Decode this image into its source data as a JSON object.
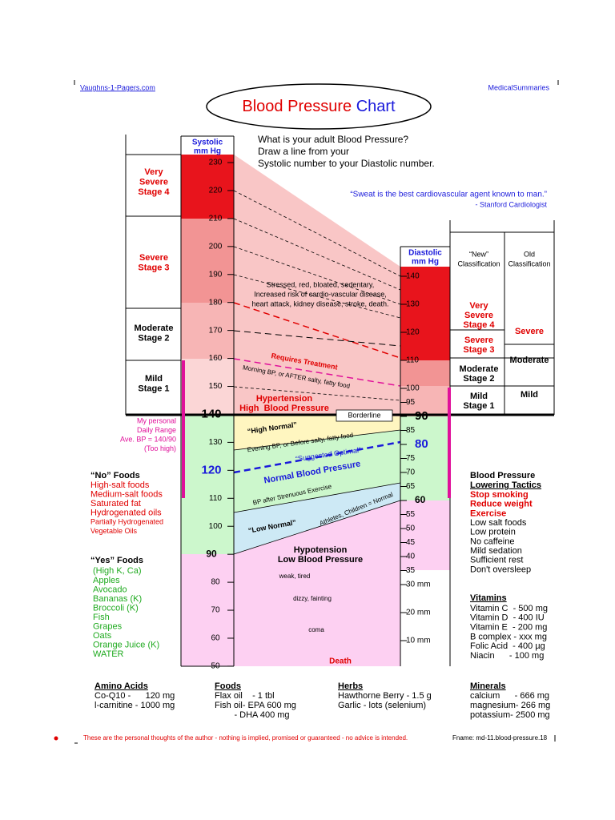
{
  "header": {
    "left": "Vaughns-1-Pagers.com",
    "right": "MedicalSummaries"
  },
  "title": {
    "main": "Blood Pressure",
    "accent": "Chart"
  },
  "instructions": [
    "What is your adult Blood Pressure?",
    "Draw a line from your",
    "Systolic number to your Diastolic number."
  ],
  "quote": {
    "text": "“Sweat is the best cardiovascular agent known to man.”",
    "source": "- Stanford Cardiologist"
  },
  "systolic": {
    "header": [
      "Systolic",
      "mm Hg"
    ],
    "ticks": [
      230,
      220,
      210,
      200,
      190,
      180,
      170,
      160,
      150,
      140,
      130,
      120,
      110,
      100,
      90,
      80,
      70,
      60,
      50
    ]
  },
  "diastolic": {
    "header": [
      "Diastolic",
      "mm Hg"
    ],
    "ticks": [
      140,
      130,
      120,
      110,
      100,
      95,
      90,
      85,
      80,
      75,
      70,
      65,
      60,
      55,
      50,
      45,
      40,
      35,
      {
        "value": 30,
        "label": "30 mm"
      },
      {
        "value": 20,
        "label": "20 mm"
      },
      {
        "value": 10,
        "label": "10 mm"
      }
    ]
  },
  "stages_left": [
    [
      "Very",
      "Severe",
      "Stage 4"
    ],
    [
      "Severe",
      "Stage 3"
    ],
    [
      "Moderate",
      "Stage 2"
    ],
    [
      "Mild",
      "Stage 1"
    ]
  ],
  "classification": {
    "new_header": [
      "“New”",
      "Classification"
    ],
    "old_header": [
      "Old",
      "Classification"
    ],
    "new": [
      [
        "Very",
        "Severe",
        "Stage 4"
      ],
      [
        "Severe",
        "Stage 3"
      ],
      [
        "Moderate",
        "Stage 2"
      ],
      [
        "Mild",
        "Stage 1"
      ]
    ],
    "old": [
      "Severe",
      "Moderate",
      "Mild"
    ]
  },
  "annotations": {
    "stressed": [
      "Stressed, red, bloated, sedentary,",
      "Increased risk of cardio-vascular disease,",
      "heart attack, kidney disease, stroke, death."
    ],
    "requires_treatment": "Requires Treatment",
    "morning": "Morning BP, or AFTER salty, fatty food",
    "hypertension": [
      "Hypertension",
      "High  Blood Pressure"
    ],
    "borderline": "Borderline",
    "high_normal": "“High Normal”",
    "evening": "Evening BP, or Before salty, fatty food",
    "suggested_optimal": "“Suggested Optimal”",
    "normal": "Normal Blood Pressure",
    "exercise": "BP after Strenuous Exercise",
    "athletes": "Athletes, Children = Normal",
    "low_normal": "“Low Normal”",
    "hypotension": [
      "Hypotension",
      "Low Blood Pressure"
    ],
    "weak": "weak, tired",
    "dizzy": "dizzy, fainting",
    "coma": "coma",
    "death": "Death"
  },
  "personal_range": [
    "My personal",
    "Daily Range",
    "Ave. BP = 140/90",
    "(Too high)"
  ],
  "no_foods": {
    "title": "“No” Foods",
    "items": [
      "High-salt foods",
      "Medium-salt foods",
      "Saturated fat",
      "Hydrogenated oils",
      "Partially Hydrogenated",
      "Vegetable Oils"
    ]
  },
  "yes_foods": {
    "title": "“Yes” Foods",
    "subtitle": "(High K, Ca)",
    "items": [
      "Apples",
      "Avocado",
      "Bananas (K)",
      "Broccoli (K)",
      "Fish",
      "Grapes",
      "Oats",
      "Orange Juice (K)",
      "WATER"
    ]
  },
  "tactics": {
    "title": [
      "Blood Pressure",
      "Lowering Tactics"
    ],
    "priority": [
      "Stop smoking",
      "Reduce weight",
      "Exercise"
    ],
    "items": [
      "Low salt foods",
      "Low protein",
      "No caffeine",
      "Mild sedation",
      "Sufficient rest",
      "Don't oversleep"
    ]
  },
  "vitamins": {
    "title": "Vitamins",
    "items": [
      "Vitamin C  - 500 mg",
      "Vitamin D  - 400 IU",
      "Vitamin E  - 200 mg",
      "B complex - xxx mg",
      "Folic Acid  - 400 µg",
      "Niacin      - 100 mg"
    ]
  },
  "supplements": [
    {
      "title": "Amino Acids",
      "items": [
        "Co-Q10 -      120 mg",
        "l-carnitine - 1000 mg"
      ]
    },
    {
      "title": "Foods",
      "items": [
        "Flax oil    - 1 tbl",
        "Fish oil- EPA 600 mg",
        "        - DHA 400 mg"
      ]
    },
    {
      "title": "Herbs",
      "items": [
        "Hawthorne Berry - 1.5 g",
        "Garlic - lots (selenium)"
      ]
    },
    {
      "title": "Minerals",
      "items": [
        "calcium      - 666 mg",
        "magnesium- 266 mg",
        "potassium- 2500 mg"
      ]
    }
  ],
  "footer": {
    "disclaimer": "These are the personal thoughts of the author - nothing is implied, promised or guaranteed - no advice is intended.",
    "filename": "Fname: md-11.blood-pressure.18"
  }
}
